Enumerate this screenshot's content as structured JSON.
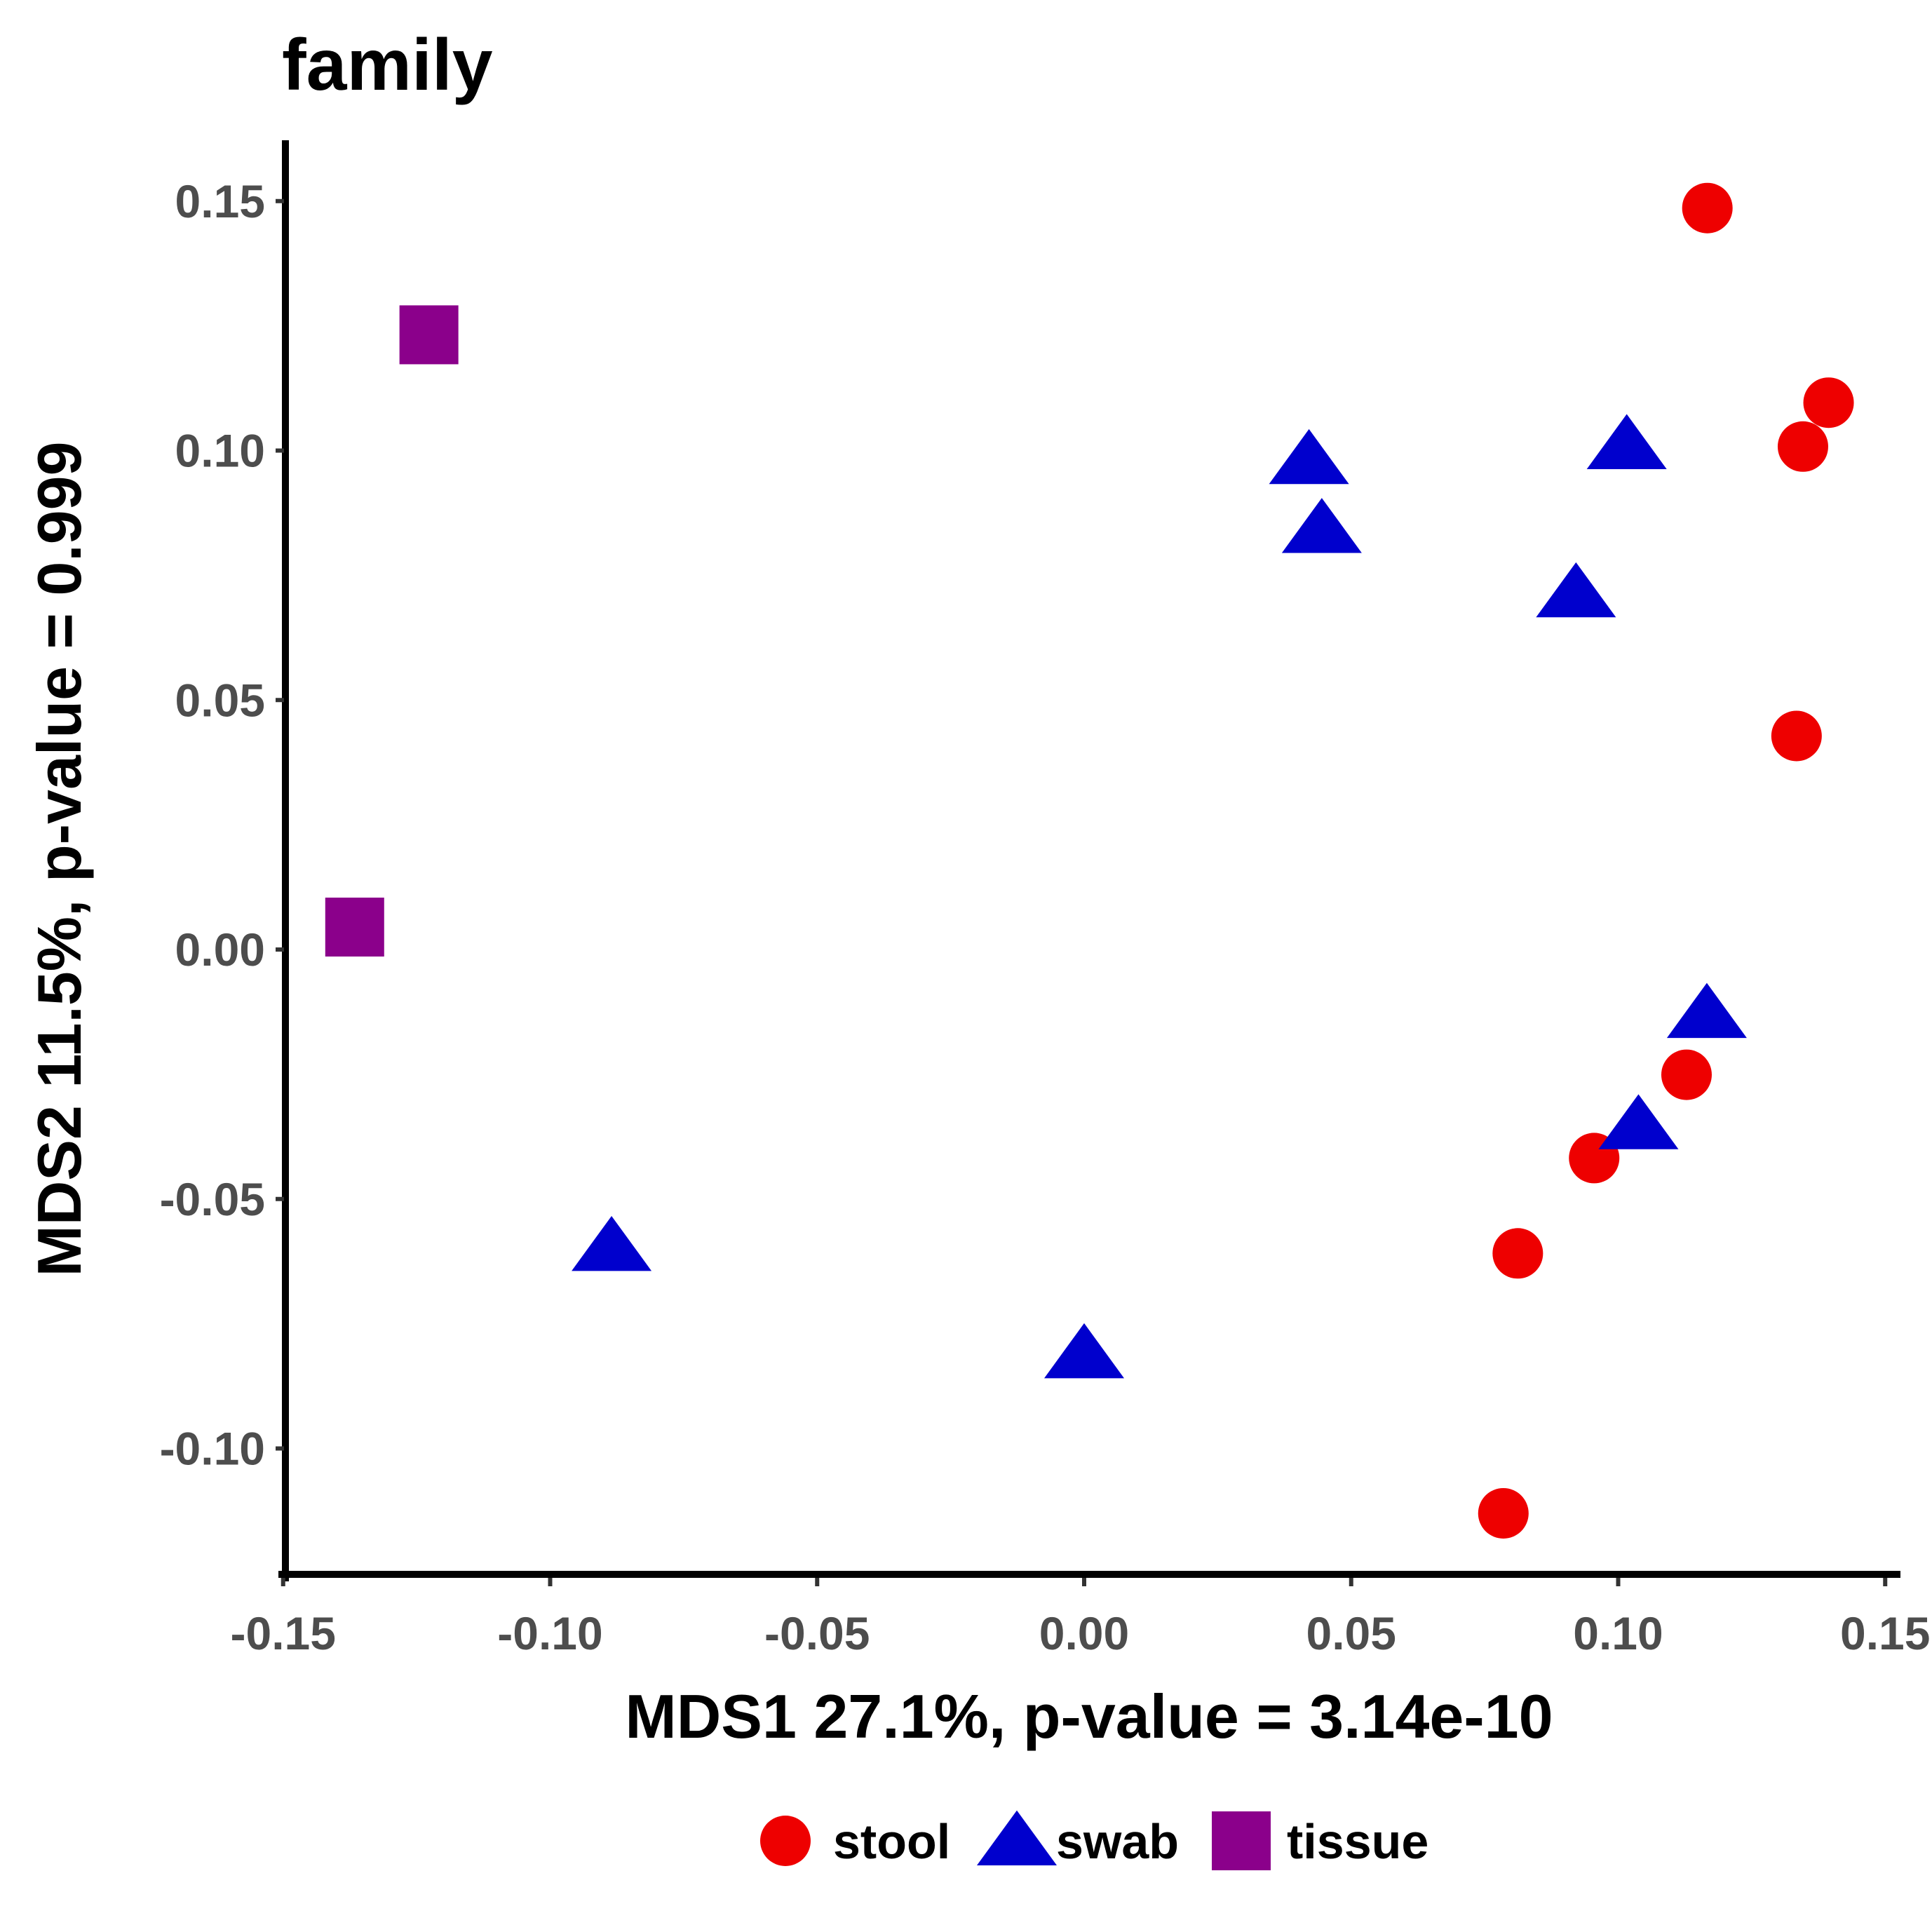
{
  "chart_data": {
    "type": "scatter",
    "title": "family",
    "xlabel": "MDS1 27.1%, p-value = 3.14e-10",
    "ylabel": "MDS2 11.5%, p-value = 0.999",
    "xlim": [
      -0.151,
      0.152
    ],
    "ylim": [
      -0.126,
      0.161
    ],
    "x_ticks": [
      -0.15,
      -0.1,
      -0.05,
      0.0,
      0.05,
      0.1,
      0.15
    ],
    "x_tick_labels": [
      "-0.15",
      "-0.10",
      "-0.05",
      "0.00",
      "0.05",
      "0.10",
      "0.15"
    ],
    "y_ticks": [
      0.15,
      0.1,
      0.05,
      0.0,
      -0.05,
      -0.1
    ],
    "y_tick_labels": [
      "0.15",
      "0.10",
      "0.05",
      "0.00",
      "-0.05",
      "-0.10"
    ],
    "grid": false,
    "legend_position": "bottom",
    "series": [
      {
        "name": "stool",
        "shape": "circle",
        "color": "#ee0000",
        "points": [
          {
            "x": 0.1167,
            "y": 0.1486
          },
          {
            "x": 0.1394,
            "y": 0.1096
          },
          {
            "x": 0.1346,
            "y": 0.1008
          },
          {
            "x": 0.1334,
            "y": 0.0428
          },
          {
            "x": 0.1128,
            "y": -0.0251
          },
          {
            "x": 0.0955,
            "y": -0.0418
          },
          {
            "x": 0.0812,
            "y": -0.0609
          },
          {
            "x": 0.0785,
            "y": -0.113
          }
        ]
      },
      {
        "name": "swab",
        "shape": "triangle",
        "color": "#0000cd",
        "points": [
          {
            "x": 0.0421,
            "y": 0.0982
          },
          {
            "x": 0.0445,
            "y": 0.0844
          },
          {
            "x": 0.1016,
            "y": 0.1012
          },
          {
            "x": 0.0921,
            "y": 0.0715
          },
          {
            "x": 0.1166,
            "y": -0.0128
          },
          {
            "x": 0.1038,
            "y": -0.0351
          },
          {
            "x": -0.0885,
            "y": -0.0595
          },
          {
            "x": 0.0,
            "y": -0.081
          }
        ]
      },
      {
        "name": "tissue",
        "shape": "square",
        "color": "#8b008b",
        "points": [
          {
            "x": -0.1227,
            "y": 0.1232
          },
          {
            "x": -0.1366,
            "y": 0.0045
          }
        ]
      }
    ]
  }
}
